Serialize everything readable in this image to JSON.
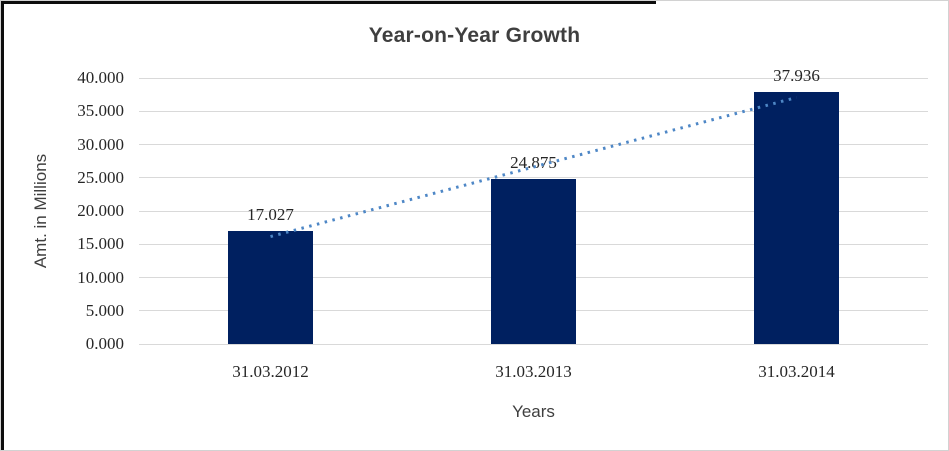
{
  "chart_data": {
    "type": "bar",
    "title": "Year-on-Year Growth",
    "xlabel": "Years",
    "ylabel": "Amt. in Millions",
    "categories": [
      "31.03.2012",
      "31.03.2013",
      "31.03.2014"
    ],
    "values": [
      17.027,
      24.875,
      37.936
    ],
    "value_labels": [
      "17.027",
      "24.875",
      "37.936"
    ],
    "ytick_labels": [
      "0.000",
      "5.000",
      "10.000",
      "15.000",
      "20.000",
      "25.000",
      "30.000",
      "35.000",
      "40.000"
    ],
    "ylim": [
      0,
      40
    ],
    "grid": true,
    "legend": "none",
    "bar_color": "#002060",
    "label_color": "#262626",
    "title_color": "#3f3f3f",
    "gridline_color": "#d9d9d9",
    "trendline": {
      "type": "linear",
      "style": "dotted",
      "color": "#4e87c6"
    }
  }
}
